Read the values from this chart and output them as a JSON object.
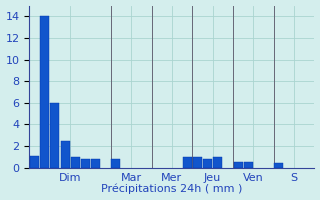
{
  "title": "",
  "xlabel": "Précipitations 24h ( mm )",
  "ylabel": "",
  "background_color": "#d4eeed",
  "bar_color": "#1155cc",
  "bar_edge_color": "#0033aa",
  "grid_color": "#aad4d0",
  "separator_color": "#666677",
  "ylim": [
    0,
    15
  ],
  "yticks": [
    0,
    2,
    4,
    6,
    8,
    10,
    12,
    14
  ],
  "day_labels": [
    "Dim",
    "Mar",
    "Mer",
    "Jeu",
    "Ven",
    "S"
  ],
  "day_n_slots": [
    8,
    4,
    4,
    4,
    4,
    4
  ],
  "bars": [
    {
      "slot": 1,
      "val": 1.1
    },
    {
      "slot": 2,
      "val": 14.0
    },
    {
      "slot": 3,
      "val": 6.0
    },
    {
      "slot": 4,
      "val": 2.5
    },
    {
      "slot": 5,
      "val": 1.0
    },
    {
      "slot": 6,
      "val": 0.8
    },
    {
      "slot": 7,
      "val": 0.8
    },
    {
      "slot": 9,
      "val": 0.8
    },
    {
      "slot": 16,
      "val": 1.0
    },
    {
      "slot": 17,
      "val": 1.0
    },
    {
      "slot": 18,
      "val": 0.8
    },
    {
      "slot": 19,
      "val": 1.0
    },
    {
      "slot": 21,
      "val": 0.5
    },
    {
      "slot": 22,
      "val": 0.5
    },
    {
      "slot": 25,
      "val": 0.4
    }
  ],
  "label_fontsize": 8,
  "tick_fontsize": 8,
  "tick_color": "#2244bb",
  "xlabel_color": "#2244bb",
  "grid_linewidth": 0.6,
  "separator_linewidth": 0.7
}
